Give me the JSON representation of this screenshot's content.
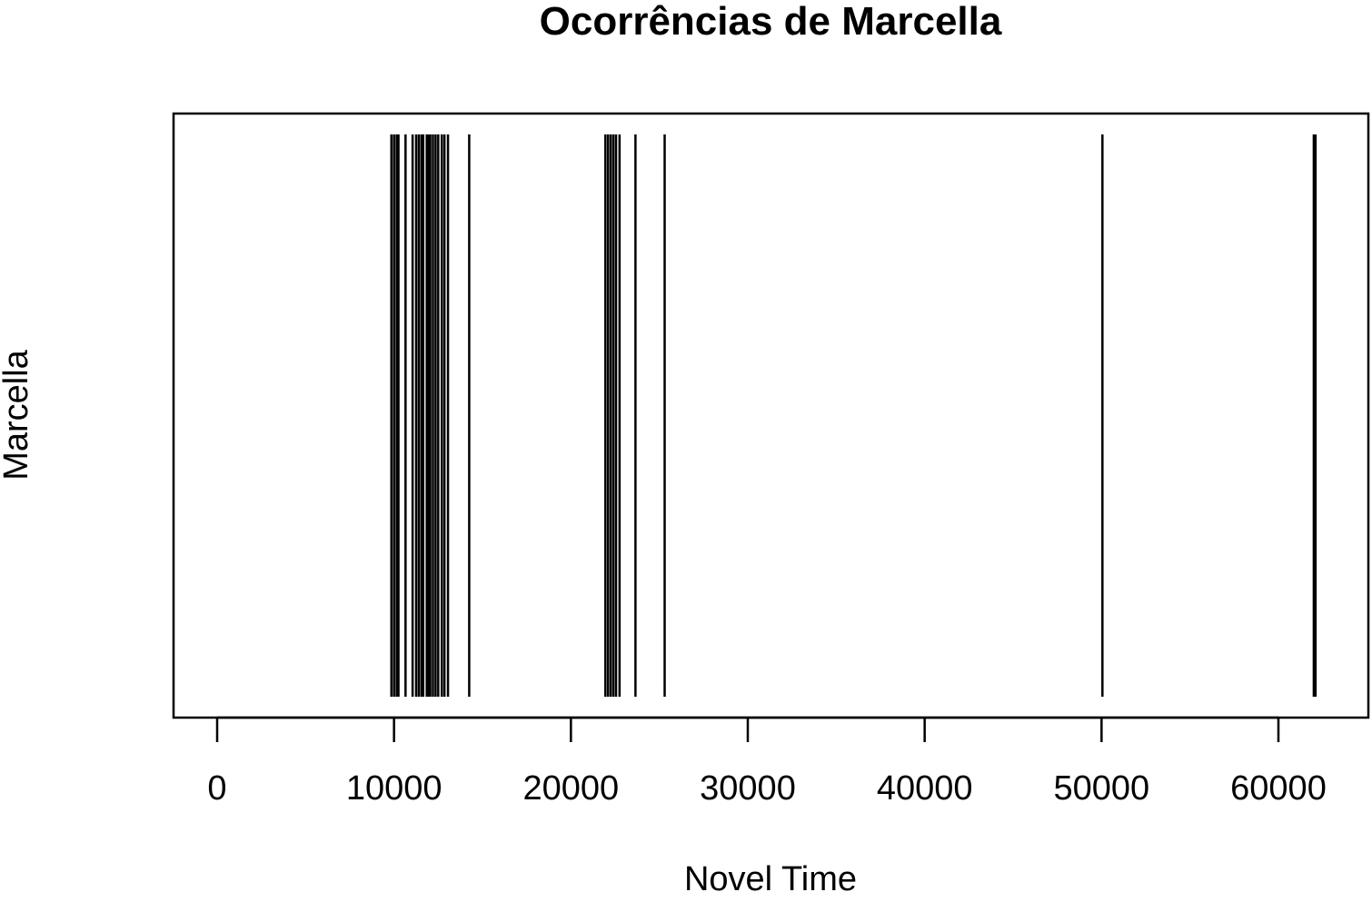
{
  "chart_data": {
    "type": "dispersion",
    "title": "Ocorrências de Marcella",
    "xlabel": "Novel Time",
    "ylabel": "Marcella",
    "xlim": [
      0,
      62000
    ],
    "xticks": [
      0,
      10000,
      20000,
      30000,
      40000,
      50000,
      60000
    ],
    "xtick_labels": [
      "0",
      "10000",
      "20000",
      "30000",
      "40000",
      "50000",
      "60000"
    ],
    "series": [
      {
        "name": "Marcella",
        "occurrences": [
          9850,
          10000,
          10150,
          10250,
          10650,
          11050,
          11250,
          11400,
          11550,
          11650,
          11850,
          11950,
          12050,
          12200,
          12350,
          12500,
          12700,
          12850,
          13050,
          14250,
          21950,
          22100,
          22250,
          22400,
          22550,
          22750,
          23650,
          25300,
          50050,
          62000,
          62100
        ]
      }
    ],
    "grid": false,
    "legend": "none",
    "color": "#000000"
  }
}
